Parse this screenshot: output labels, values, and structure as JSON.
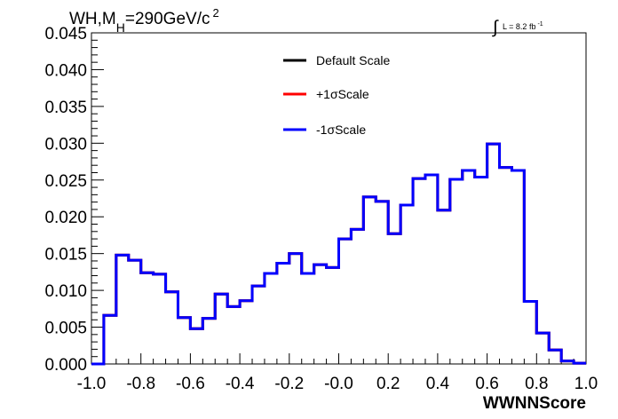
{
  "chart_data": {
    "type": "line",
    "title": {
      "main": "WH,M",
      "sub": "H",
      "rest": "=290GeV/c",
      "sup": "2"
    },
    "lumi": {
      "integral_sign": "∫",
      "text": "L = 8.2 fb",
      "sup": "-1"
    },
    "xlabel": "WWNNScore",
    "ylabel": "",
    "xlim": [
      -1.0,
      1.0
    ],
    "ylim": [
      0.0,
      0.045
    ],
    "x_ticks": [
      "-1.0",
      "-0.8",
      "-0.6",
      "-0.4",
      "-0.2",
      "-0.0",
      "0.2",
      "0.4",
      "0.6",
      "0.8",
      "1.0"
    ],
    "x_tick_values": [
      -1.0,
      -0.8,
      -0.6,
      -0.4,
      -0.2,
      0.0,
      0.2,
      0.4,
      0.6,
      0.8,
      1.0
    ],
    "y_ticks": [
      "0.000",
      "0.005",
      "0.010",
      "0.015",
      "0.020",
      "0.025",
      "0.030",
      "0.035",
      "0.040",
      "0.045"
    ],
    "y_tick_values": [
      0.0,
      0.005,
      0.01,
      0.015,
      0.02,
      0.025,
      0.03,
      0.035,
      0.04,
      0.045
    ],
    "bin_edges": [
      -1.0,
      -0.95,
      -0.9,
      -0.85,
      -0.8,
      -0.75,
      -0.7,
      -0.65,
      -0.6,
      -0.55,
      -0.5,
      -0.45,
      -0.4,
      -0.35,
      -0.3,
      -0.25,
      -0.2,
      -0.15,
      -0.1,
      -0.05,
      0.0,
      0.05,
      0.1,
      0.15,
      0.2,
      0.25,
      0.3,
      0.35,
      0.4,
      0.45,
      0.5,
      0.55,
      0.6,
      0.65,
      0.7,
      0.75,
      0.8,
      0.85,
      0.9,
      0.95,
      1.0
    ],
    "series": [
      {
        "name": "Default Scale",
        "color": "#000000",
        "values": [
          0.0,
          0.0066,
          0.0148,
          0.0141,
          0.0124,
          0.0122,
          0.0098,
          0.0063,
          0.0048,
          0.0062,
          0.0095,
          0.0078,
          0.0086,
          0.0106,
          0.0123,
          0.0137,
          0.015,
          0.0123,
          0.0135,
          0.0131,
          0.017,
          0.0183,
          0.0227,
          0.0221,
          0.0177,
          0.0216,
          0.0252,
          0.0257,
          0.0209,
          0.0251,
          0.0263,
          0.0254,
          0.0299,
          0.0267,
          0.0263,
          0.0085,
          0.0042,
          0.0019,
          0.0004,
          0.0001
        ]
      },
      {
        "name": "+1σScale",
        "color": "#ff0000",
        "values": [
          0.0,
          0.0066,
          0.0148,
          0.0141,
          0.0124,
          0.0122,
          0.0098,
          0.0063,
          0.0048,
          0.0062,
          0.0095,
          0.0078,
          0.0086,
          0.0106,
          0.0123,
          0.0137,
          0.015,
          0.0123,
          0.0135,
          0.0131,
          0.017,
          0.0183,
          0.0227,
          0.0221,
          0.0177,
          0.0216,
          0.0252,
          0.0257,
          0.0209,
          0.0251,
          0.0263,
          0.0254,
          0.0299,
          0.0267,
          0.0263,
          0.0085,
          0.0042,
          0.0019,
          0.0004,
          0.0001
        ]
      },
      {
        "name": "-1σScale",
        "color": "#0000ff",
        "values": [
          0.0,
          0.0066,
          0.0148,
          0.0141,
          0.0124,
          0.0122,
          0.0098,
          0.0063,
          0.0048,
          0.0062,
          0.0095,
          0.0078,
          0.0086,
          0.0106,
          0.0123,
          0.0137,
          0.015,
          0.0123,
          0.0135,
          0.0131,
          0.017,
          0.0183,
          0.0227,
          0.0221,
          0.0177,
          0.0216,
          0.0252,
          0.0257,
          0.0209,
          0.0251,
          0.0263,
          0.0254,
          0.0299,
          0.0267,
          0.0263,
          0.0085,
          0.0042,
          0.0019,
          0.0004,
          0.0001
        ]
      }
    ],
    "legend": {
      "placement": "top-center",
      "entries": [
        "Default Scale",
        "+1σScale",
        "-1σScale"
      ]
    },
    "grid": false
  }
}
